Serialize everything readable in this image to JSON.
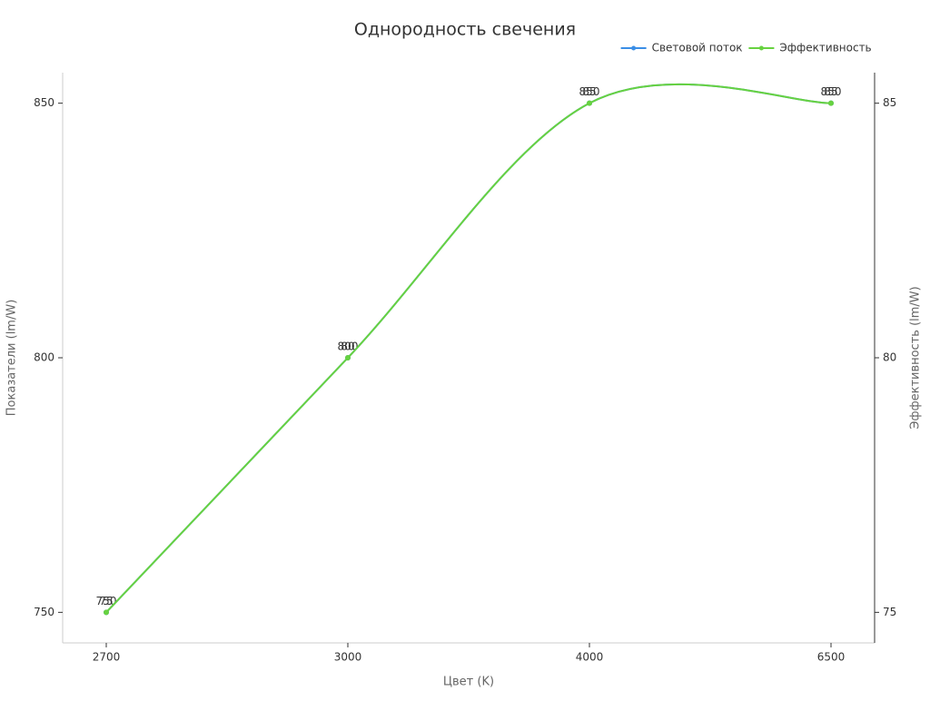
{
  "chart_data": {
    "type": "line",
    "title": "Однородность свечения",
    "x_label": "Цвет (K)",
    "y_label": "Показатели (lm/W)",
    "y2_label": "Эффективность (lm/W)",
    "categories": [
      "2700",
      "3000",
      "4000",
      "6500"
    ],
    "series": [
      {
        "name": "Световой поток",
        "color": "#3a8ee6",
        "values": [
          750,
          800,
          850,
          850
        ]
      },
      {
        "name": "Эффективность",
        "color": "#67d240",
        "values": [
          75,
          80,
          85,
          85
        ],
        "axis": "y2"
      }
    ],
    "ylim": [
      744,
      856
    ],
    "yticks": [
      750,
      800,
      850
    ],
    "y2lim": [
      74.4,
      85.6
    ],
    "y2ticks": [
      75,
      80,
      85
    ],
    "smooth": true,
    "legend": "top-right"
  }
}
